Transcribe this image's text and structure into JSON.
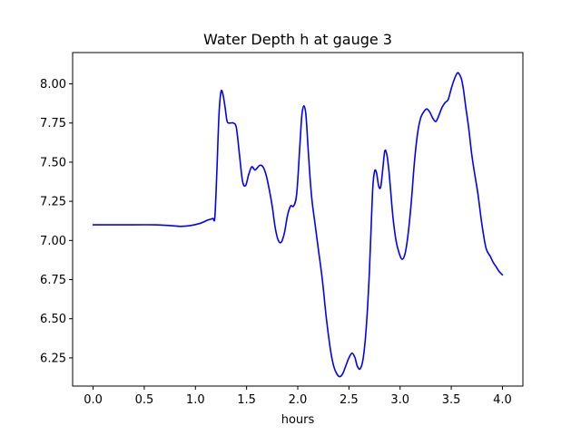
{
  "chart_data": {
    "type": "line",
    "title": "Water Depth h at gauge 3",
    "xlabel": "hours",
    "ylabel": "",
    "xlim": [
      -0.2,
      4.2
    ],
    "ylim": [
      6.07,
      8.2
    ],
    "xticks": [
      0.0,
      0.5,
      1.0,
      1.5,
      2.0,
      2.5,
      3.0,
      3.5,
      4.0
    ],
    "xtick_labels": [
      "0.0",
      "0.5",
      "1.0",
      "1.5",
      "2.0",
      "2.5",
      "3.0",
      "3.5",
      "4.0"
    ],
    "yticks": [
      6.25,
      6.5,
      6.75,
      7.0,
      7.25,
      7.5,
      7.75,
      8.0
    ],
    "ytick_labels": [
      "6.25",
      "6.50",
      "6.75",
      "7.00",
      "7.25",
      "7.50",
      "7.75",
      "8.00"
    ],
    "grid": false,
    "line_color": "#0000ff",
    "series": [
      {
        "x": [
          0.0,
          0.3,
          0.6,
          0.75,
          0.85,
          0.95,
          1.05,
          1.12,
          1.17,
          1.19,
          1.21,
          1.23,
          1.25,
          1.27,
          1.29,
          1.31,
          1.34,
          1.37,
          1.4,
          1.43,
          1.46,
          1.49,
          1.52,
          1.55,
          1.58,
          1.6,
          1.63,
          1.66,
          1.69,
          1.72,
          1.75,
          1.78,
          1.81,
          1.84,
          1.87,
          1.9,
          1.93,
          1.96,
          1.99,
          2.02,
          2.04,
          2.06,
          2.08,
          2.1,
          2.12,
          2.14,
          2.17,
          2.2,
          2.24,
          2.28,
          2.32,
          2.35,
          2.38,
          2.41,
          2.44,
          2.47,
          2.5,
          2.53,
          2.56,
          2.58,
          2.61,
          2.64,
          2.67,
          2.7,
          2.73,
          2.75,
          2.77,
          2.79,
          2.81,
          2.83,
          2.85,
          2.87,
          2.89,
          2.91,
          2.93,
          2.96,
          2.99,
          3.02,
          3.05,
          3.08,
          3.11,
          3.14,
          3.17,
          3.2,
          3.23,
          3.26,
          3.29,
          3.32,
          3.35,
          3.38,
          3.41,
          3.44,
          3.47,
          3.5,
          3.53,
          3.56,
          3.58,
          3.6,
          3.62,
          3.64,
          3.67,
          3.7,
          3.73,
          3.76,
          3.8,
          3.84,
          3.88,
          3.91,
          3.94,
          3.97,
          4.0
        ],
        "y": [
          7.1,
          7.1,
          7.1,
          7.095,
          7.09,
          7.095,
          7.11,
          7.13,
          7.14,
          7.15,
          7.45,
          7.8,
          7.95,
          7.93,
          7.85,
          7.76,
          7.75,
          7.75,
          7.72,
          7.55,
          7.38,
          7.35,
          7.42,
          7.47,
          7.45,
          7.46,
          7.48,
          7.47,
          7.42,
          7.33,
          7.22,
          7.08,
          7.0,
          6.99,
          7.05,
          7.16,
          7.22,
          7.22,
          7.3,
          7.6,
          7.8,
          7.86,
          7.8,
          7.6,
          7.4,
          7.25,
          7.1,
          6.95,
          6.75,
          6.5,
          6.3,
          6.2,
          6.15,
          6.13,
          6.15,
          6.2,
          6.25,
          6.28,
          6.25,
          6.2,
          6.18,
          6.25,
          6.45,
          6.8,
          7.3,
          7.44,
          7.43,
          7.35,
          7.34,
          7.45,
          7.57,
          7.55,
          7.45,
          7.3,
          7.15,
          7.0,
          6.92,
          6.88,
          6.92,
          7.05,
          7.25,
          7.5,
          7.68,
          7.78,
          7.82,
          7.84,
          7.82,
          7.78,
          7.76,
          7.8,
          7.85,
          7.88,
          7.9,
          7.97,
          8.03,
          8.07,
          8.06,
          8.03,
          7.96,
          7.86,
          7.72,
          7.55,
          7.42,
          7.3,
          7.1,
          6.95,
          6.9,
          6.86,
          6.83,
          6.8,
          6.78
        ]
      }
    ]
  }
}
